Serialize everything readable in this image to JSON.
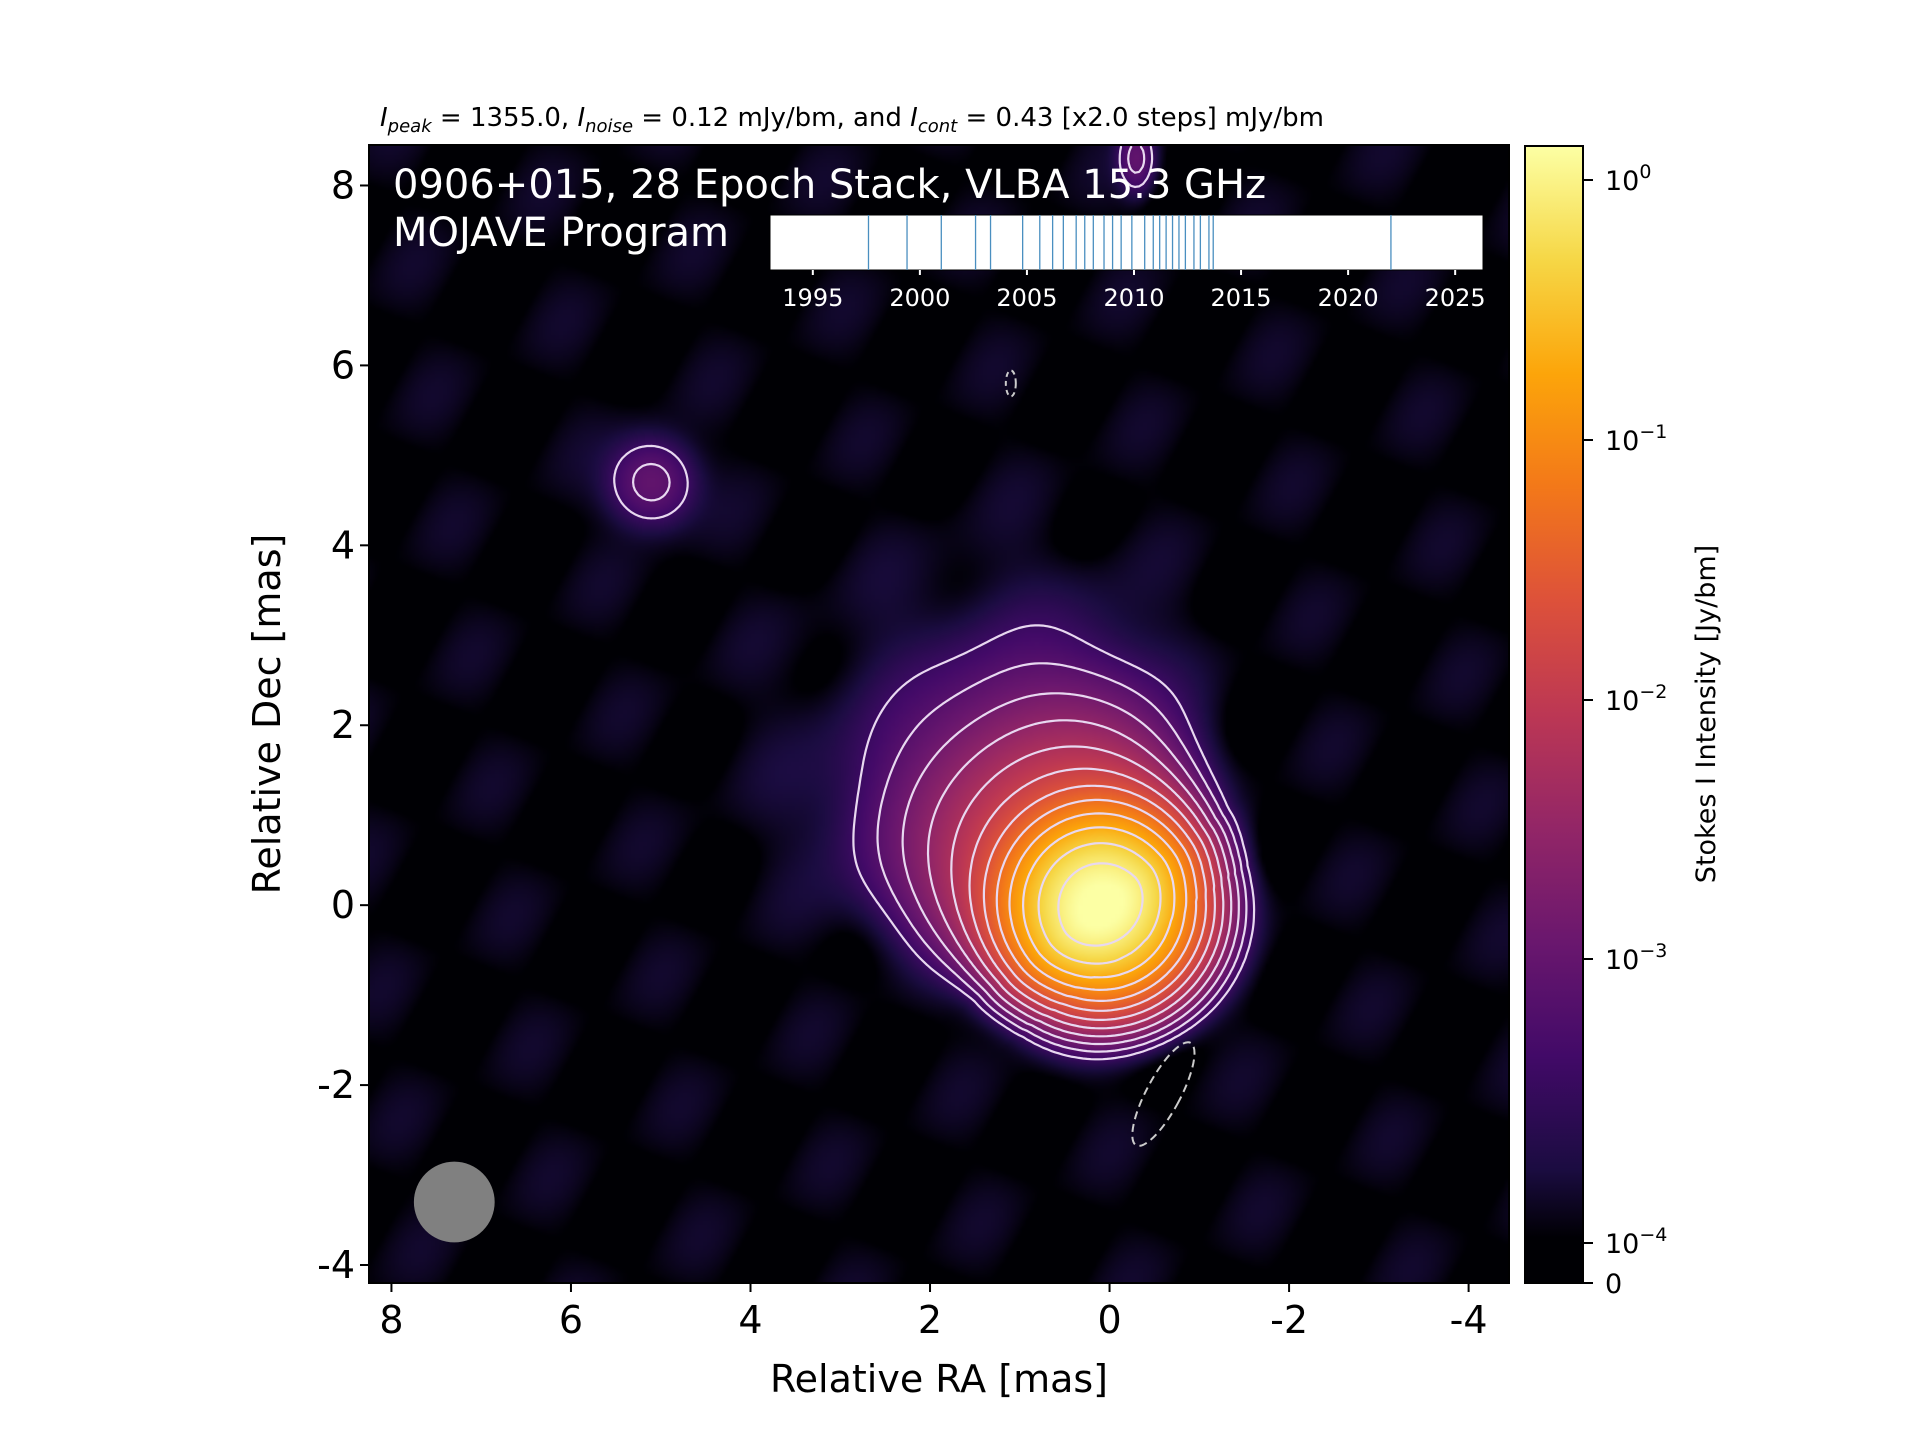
{
  "chart_data": {
    "type": "heatmap",
    "header": {
      "peak_label": "I",
      "peak_sub": "peak",
      "peak_text": " = 1355.0, ",
      "noise_label": "I",
      "noise_sub": "noise",
      "noise_text": " = 0.12 mJy/bm, and ",
      "cont_label": "I",
      "cont_sub": "cont",
      "cont_text": " = 0.43 [x2.0 steps] mJy/bm"
    },
    "title_line1": "0906+015, 28 Epoch Stack, VLBA 15.3 GHz",
    "title_line2": "MOJAVE Program",
    "xlabel": "Relative RA [mas]",
    "ylabel": "Relative Dec [mas]",
    "x_range": [
      8.25,
      -4.45
    ],
    "y_range": [
      -4.2,
      8.45
    ],
    "x_ticks": [
      {
        "v": 8,
        "label": "8"
      },
      {
        "v": 6,
        "label": "6"
      },
      {
        "v": 4,
        "label": "4"
      },
      {
        "v": 2,
        "label": "2"
      },
      {
        "v": 0,
        "label": "0"
      },
      {
        "v": -2,
        "label": "-2"
      },
      {
        "v": -4,
        "label": "-4"
      }
    ],
    "y_ticks": [
      {
        "v": -4,
        "label": "-4"
      },
      {
        "v": -2,
        "label": "-2"
      },
      {
        "v": 0,
        "label": "0"
      },
      {
        "v": 2,
        "label": "2"
      },
      {
        "v": 4,
        "label": "4"
      },
      {
        "v": 6,
        "label": "6"
      },
      {
        "v": 8,
        "label": "8"
      }
    ],
    "colormap": "inferno",
    "colorbar": {
      "label": "Stokes I Intensity [Jy/bm]",
      "scale": "log",
      "ticks": [
        {
          "v": 1.0,
          "base": "10",
          "exp": "0"
        },
        {
          "v": 0.1,
          "base": "10",
          "exp": "−1"
        },
        {
          "v": 0.01,
          "base": "10",
          "exp": "−2"
        },
        {
          "v": 0.001,
          "base": "10",
          "exp": "−3"
        },
        {
          "v": 0.0001,
          "base": "10",
          "exp": "−4"
        },
        {
          "v": 0,
          "base": "0",
          "exp": ""
        }
      ],
      "range": [
        0,
        1.355
      ]
    },
    "contours": {
      "base_mJy_per_beam": 0.43,
      "step_factor": 2.0,
      "color": "#e8d8f0",
      "negative_style": "dashed"
    },
    "beam": {
      "ra": 7.3,
      "dec": -3.3,
      "fwhm_mas": 0.9,
      "color": "#808080"
    },
    "epoch_timeline": {
      "range": [
        1993,
        2026.3
      ],
      "tick_labels": [
        1995,
        2000,
        2005,
        2010,
        2015,
        2020,
        2025
      ],
      "epochs": [
        1997.6,
        1999.4,
        2001.0,
        2002.6,
        2003.3,
        2004.8,
        2005.6,
        2006.2,
        2006.7,
        2007.3,
        2007.7,
        2008.1,
        2008.6,
        2009.0,
        2009.4,
        2009.9,
        2010.5,
        2010.9,
        2011.2,
        2011.5,
        2011.8,
        2012.1,
        2012.4,
        2012.8,
        2013.1,
        2013.5,
        2013.7,
        2022.0
      ],
      "line_color": "#4a8fc0"
    },
    "features": {
      "core": {
        "ra": 0.1,
        "dec": 0.0,
        "peak": 1.355
      },
      "jet_direction_deg": 53,
      "knot": {
        "ra": 5.1,
        "dec": 4.7
      },
      "negative_islands": [
        {
          "ra": -0.6,
          "dec": -2.1
        },
        {
          "ra": 1.1,
          "dec": 5.8
        }
      ],
      "positive_island": {
        "ra": -0.3,
        "dec": 8.3
      }
    }
  }
}
